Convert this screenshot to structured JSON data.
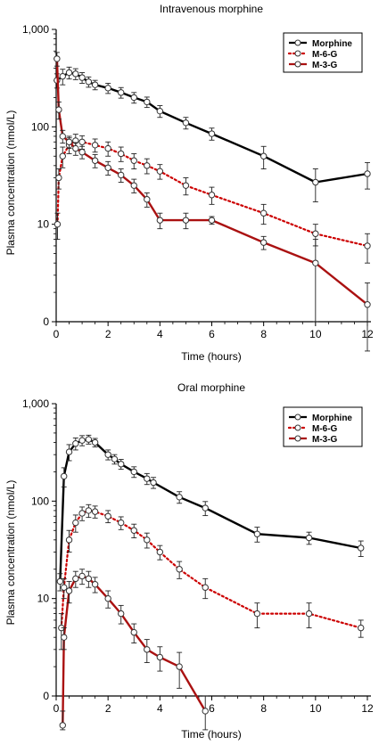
{
  "chart_data": [
    {
      "type": "line",
      "title": "Intravenous morphine",
      "xlabel": "Time (hours)",
      "ylabel": "Plasma concentration (nmol/L)",
      "xlim": [
        0,
        12
      ],
      "x_ticks": [
        "0",
        "2",
        "4",
        "6",
        "8",
        "10",
        "12"
      ],
      "y_scale": "log",
      "y_ticks": [
        "0",
        "10",
        "100",
        "1,000"
      ],
      "legend_position": "top-right",
      "grid": false,
      "series": [
        {
          "name": "Morphine",
          "color": "#000000",
          "line": "solid",
          "x": [
            0.03,
            0.25,
            0.5,
            0.75,
            1.0,
            1.25,
            1.5,
            2.0,
            2.5,
            3.0,
            3.5,
            4.0,
            5.0,
            6.0,
            8.0,
            10.0,
            12.0
          ],
          "y": [
            300,
            330,
            360,
            350,
            320,
            290,
            270,
            250,
            225,
            200,
            180,
            145,
            110,
            85,
            50,
            27,
            33
          ],
          "err": [
            50,
            60,
            50,
            45,
            40,
            35,
            30,
            30,
            28,
            25,
            22,
            20,
            15,
            12,
            13,
            10,
            10
          ]
        },
        {
          "name": "M-6-G",
          "color": "#cc0000",
          "line": "dotted",
          "x": [
            0.05,
            0.1,
            0.25,
            0.5,
            0.75,
            1.0,
            1.5,
            2.0,
            2.5,
            3.0,
            3.5,
            4.0,
            5.0,
            6.0,
            8.0,
            10.0,
            12.0
          ],
          "y": [
            10,
            30,
            50,
            65,
            72,
            70,
            65,
            60,
            53,
            45,
            40,
            35,
            25,
            20,
            13,
            8,
            6
          ],
          "err": [
            3,
            7,
            12,
            12,
            12,
            11,
            10,
            10,
            9,
            8,
            7,
            6,
            5,
            4,
            3,
            2,
            2
          ]
        },
        {
          "name": "M-3-G",
          "color": "#aa1111",
          "line": "solid",
          "x": [
            0.03,
            0.1,
            0.25,
            0.5,
            0.75,
            1.0,
            1.5,
            2.0,
            2.5,
            3.0,
            3.5,
            4.0,
            5.0,
            6.0,
            8.0,
            10.0,
            12.0
          ],
          "y": [
            500,
            150,
            80,
            70,
            60,
            55,
            45,
            38,
            32,
            25,
            18,
            11,
            11,
            11,
            6.5,
            4,
            1.5
          ],
          "err": [
            80,
            30,
            12,
            10,
            9,
            8,
            7,
            6,
            5,
            4,
            3,
            2,
            2,
            1,
            1,
            3,
            1
          ]
        }
      ]
    },
    {
      "type": "line",
      "title": "Oral morphine",
      "xlabel": "Time (hours)",
      "ylabel": "Plasma concentration (nmol/L)",
      "xlim": [
        0,
        12
      ],
      "x_ticks": [
        "0",
        "2",
        "4",
        "6",
        "8",
        "10",
        "12"
      ],
      "y_scale": "log",
      "y_ticks": [
        "0",
        "10",
        "100",
        "1,000"
      ],
      "legend_position": "top-right",
      "grid": false,
      "series": [
        {
          "name": "Morphine",
          "color": "#000000",
          "line": "solid",
          "x": [
            0.15,
            0.3,
            0.5,
            0.75,
            1.0,
            1.25,
            1.5,
            2.0,
            2.25,
            2.5,
            3.0,
            3.5,
            3.75,
            4.75,
            5.75,
            7.75,
            9.75,
            11.75
          ],
          "y": [
            15,
            180,
            320,
            390,
            420,
            430,
            400,
            300,
            270,
            240,
            200,
            170,
            155,
            110,
            85,
            46,
            42,
            33
          ],
          "err": [
            3,
            40,
            60,
            55,
            50,
            45,
            40,
            35,
            30,
            28,
            25,
            22,
            20,
            15,
            14,
            8,
            6,
            6
          ]
        },
        {
          "name": "M-6-G",
          "color": "#cc0000",
          "line": "dotted",
          "x": [
            0.2,
            0.3,
            0.5,
            0.75,
            1.0,
            1.25,
            1.5,
            2.0,
            2.5,
            3.0,
            3.5,
            4.0,
            4.75,
            5.75,
            7.75,
            9.75,
            11.75
          ],
          "y": [
            5,
            13,
            40,
            60,
            75,
            80,
            78,
            70,
            60,
            50,
            40,
            30,
            20,
            13,
            7,
            7,
            5
          ],
          "err": [
            2,
            3,
            10,
            12,
            12,
            12,
            11,
            10,
            9,
            8,
            7,
            5,
            4,
            3,
            2,
            2,
            1
          ]
        },
        {
          "name": "M-3-G",
          "color": "#aa1111",
          "line": "solid",
          "x": [
            0.25,
            0.3,
            0.5,
            0.75,
            1.0,
            1.25,
            1.5,
            2.0,
            2.5,
            3.0,
            3.5,
            4.0,
            4.75,
            5.75
          ],
          "y": [
            0.5,
            4,
            12,
            16,
            17,
            16,
            14,
            10,
            7,
            4.5,
            3,
            2.5,
            2,
            0.7
          ],
          "err": [
            0.2,
            1,
            3,
            3,
            3,
            3,
            2.5,
            2,
            1.5,
            1,
            0.8,
            0.7,
            0.8,
            0.3
          ]
        }
      ]
    }
  ]
}
